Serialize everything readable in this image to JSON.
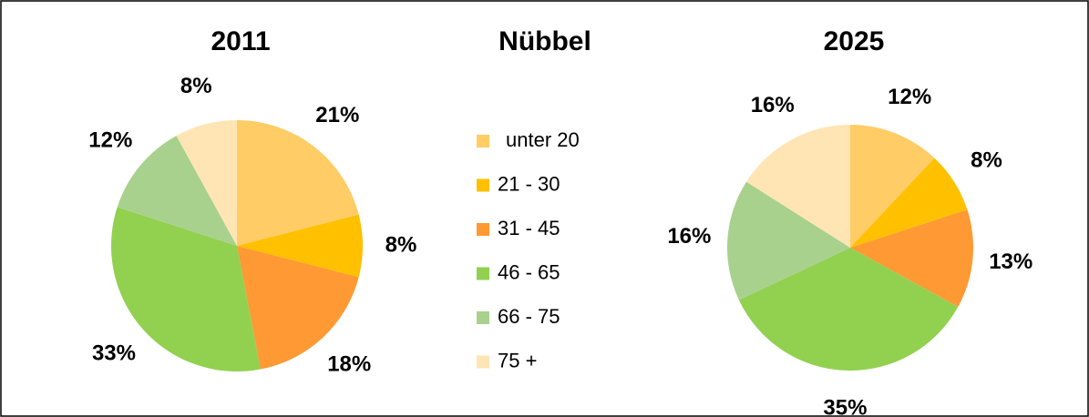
{
  "title": "Nübbel",
  "categories": [
    "unter 20",
    "21 - 30",
    "31 - 45",
    "46 - 65",
    "66 - 75",
    "75 +"
  ],
  "colors": [
    "#FFCC66",
    "#FFC000",
    "#FF9933",
    "#92D050",
    "#A9D18E",
    "#FFE5B4"
  ],
  "chart_data": [
    {
      "type": "pie",
      "title": "2011",
      "values": [
        21,
        8,
        18,
        33,
        12,
        8
      ],
      "value_labels": [
        "21%",
        "8%",
        "18%",
        "33%",
        "12%",
        "8%"
      ]
    },
    {
      "type": "pie",
      "title": "2025",
      "values": [
        12,
        8,
        13,
        35,
        16,
        16
      ],
      "value_labels": [
        "12%",
        "8%",
        "13%",
        "35%",
        "16%",
        "16%"
      ]
    }
  ]
}
